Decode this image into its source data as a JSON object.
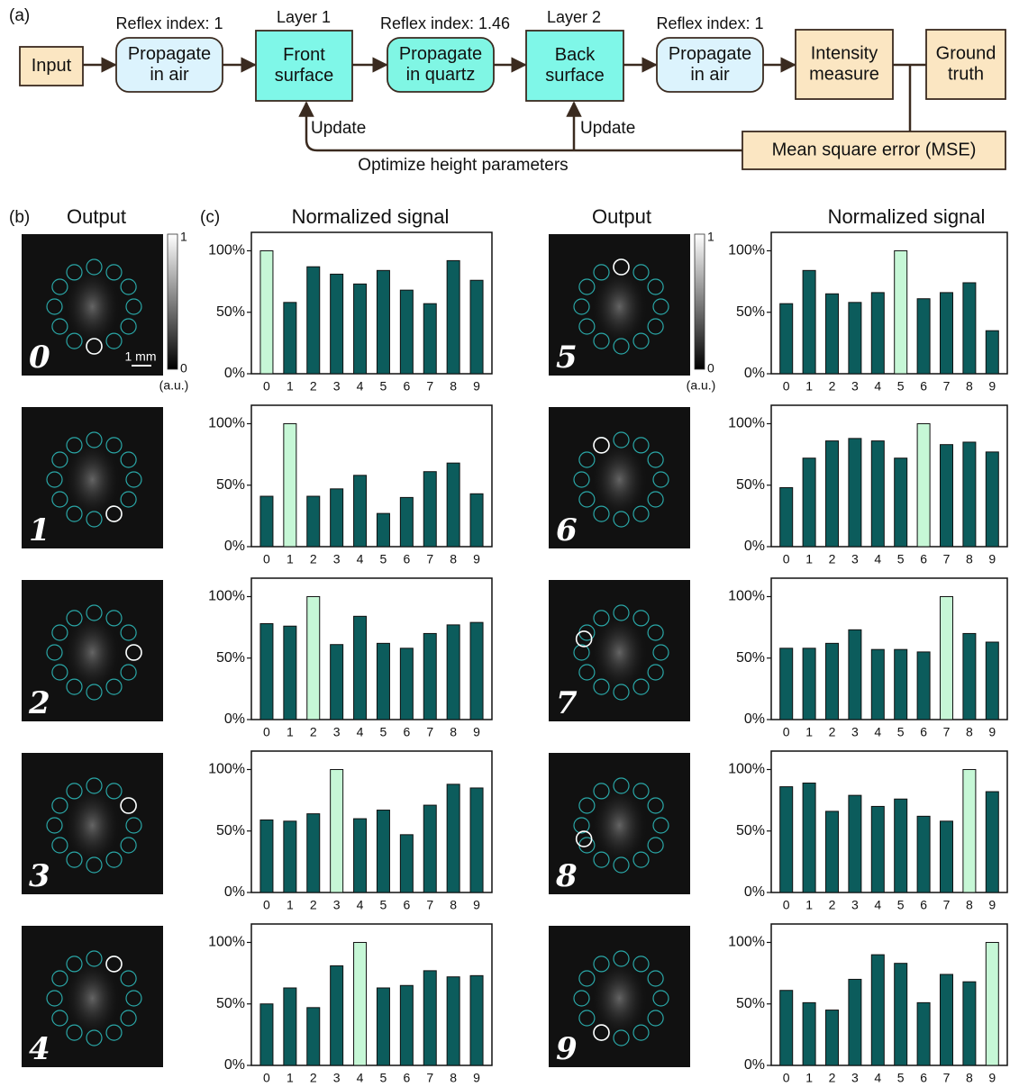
{
  "diagram": {
    "panel_label": "(a)",
    "nodes": [
      {
        "lines": [
          "Input"
        ]
      },
      {
        "lines": [
          "Propagate",
          "in air"
        ]
      },
      {
        "lines": [
          "Front",
          "surface"
        ]
      },
      {
        "lines": [
          "Propagate",
          "in quartz"
        ]
      },
      {
        "lines": [
          "Back",
          "surface"
        ]
      },
      {
        "lines": [
          "Propagate",
          "in air"
        ]
      },
      {
        "lines": [
          "Intensity",
          "measure"
        ]
      },
      {
        "lines": [
          "Ground",
          "truth"
        ]
      },
      {
        "lines": [
          "Mean square error (MSE)"
        ]
      }
    ],
    "top_labels": [
      "Reflex index: 1",
      "Layer 1",
      "Reflex index: 1.46",
      "Layer 2",
      "Reflex index: 1"
    ],
    "update_labels": [
      "Update",
      "Update"
    ],
    "feedback_label": "Optimize height parameters"
  },
  "panels": {
    "b_label": "(b)",
    "c_label": "(c)",
    "output_titles": [
      "Output",
      "Output"
    ],
    "signal_titles": [
      "Normalized signal",
      "Normalized signal"
    ],
    "scale_bar": "1 mm",
    "colorbar": {
      "ticks": [
        1,
        0
      ],
      "unit": "(a.u.)"
    },
    "digits": [
      "0",
      "1",
      "2",
      "3",
      "4",
      "5",
      "6",
      "7",
      "8",
      "9"
    ]
  },
  "chart_data": [
    {
      "type": "bar",
      "categories": [
        "0",
        "1",
        "2",
        "3",
        "4",
        "5",
        "6",
        "7",
        "8",
        "9"
      ],
      "values": [
        100,
        58,
        87,
        81,
        73,
        84,
        68,
        57,
        92,
        76
      ],
      "colors": [
        "#c6f7d6",
        "#0c5c5c",
        "#0c5c5c",
        "#0c5c5c",
        "#0c5c5c",
        "#0c5c5c",
        "#0c5c5c",
        "#0c5c5c",
        "#0c5c5c",
        "#0c5c5c"
      ],
      "ylim": [
        0,
        115
      ],
      "yticks": [
        {
          "value": 0,
          "label": "0%"
        },
        {
          "value": 50,
          "label": "50%"
        },
        {
          "value": 100,
          "label": "100%"
        }
      ]
    },
    {
      "type": "bar",
      "categories": [
        "0",
        "1",
        "2",
        "3",
        "4",
        "5",
        "6",
        "7",
        "8",
        "9"
      ],
      "values": [
        41,
        100,
        41,
        47,
        58,
        27,
        40,
        61,
        68,
        43
      ],
      "colors": [
        "#0c5c5c",
        "#c6f7d6",
        "#0c5c5c",
        "#0c5c5c",
        "#0c5c5c",
        "#0c5c5c",
        "#0c5c5c",
        "#0c5c5c",
        "#0c5c5c",
        "#0c5c5c"
      ],
      "ylim": [
        0,
        115
      ],
      "yticks": [
        {
          "value": 0,
          "label": "0%"
        },
        {
          "value": 50,
          "label": "50%"
        },
        {
          "value": 100,
          "label": "100%"
        }
      ]
    },
    {
      "type": "bar",
      "categories": [
        "0",
        "1",
        "2",
        "3",
        "4",
        "5",
        "6",
        "7",
        "8",
        "9"
      ],
      "values": [
        78,
        76,
        100,
        61,
        84,
        62,
        58,
        70,
        77,
        79
      ],
      "colors": [
        "#0c5c5c",
        "#0c5c5c",
        "#c6f7d6",
        "#0c5c5c",
        "#0c5c5c",
        "#0c5c5c",
        "#0c5c5c",
        "#0c5c5c",
        "#0c5c5c",
        "#0c5c5c"
      ],
      "ylim": [
        0,
        115
      ],
      "yticks": [
        {
          "value": 0,
          "label": "0%"
        },
        {
          "value": 50,
          "label": "50%"
        },
        {
          "value": 100,
          "label": "100%"
        }
      ]
    },
    {
      "type": "bar",
      "categories": [
        "0",
        "1",
        "2",
        "3",
        "4",
        "5",
        "6",
        "7",
        "8",
        "9"
      ],
      "values": [
        59,
        58,
        64,
        100,
        60,
        67,
        47,
        71,
        88,
        85
      ],
      "colors": [
        "#0c5c5c",
        "#0c5c5c",
        "#0c5c5c",
        "#c6f7d6",
        "#0c5c5c",
        "#0c5c5c",
        "#0c5c5c",
        "#0c5c5c",
        "#0c5c5c",
        "#0c5c5c"
      ],
      "ylim": [
        0,
        115
      ],
      "yticks": [
        {
          "value": 0,
          "label": "0%"
        },
        {
          "value": 50,
          "label": "50%"
        },
        {
          "value": 100,
          "label": "100%"
        }
      ]
    },
    {
      "type": "bar",
      "categories": [
        "0",
        "1",
        "2",
        "3",
        "4",
        "5",
        "6",
        "7",
        "8",
        "9"
      ],
      "values": [
        50,
        63,
        47,
        81,
        100,
        63,
        65,
        77,
        72,
        73
      ],
      "colors": [
        "#0c5c5c",
        "#0c5c5c",
        "#0c5c5c",
        "#0c5c5c",
        "#c6f7d6",
        "#0c5c5c",
        "#0c5c5c",
        "#0c5c5c",
        "#0c5c5c",
        "#0c5c5c"
      ],
      "ylim": [
        0,
        115
      ],
      "yticks": [
        {
          "value": 0,
          "label": "0%"
        },
        {
          "value": 50,
          "label": "50%"
        },
        {
          "value": 100,
          "label": "100%"
        }
      ]
    },
    {
      "type": "bar",
      "categories": [
        "0",
        "1",
        "2",
        "3",
        "4",
        "5",
        "6",
        "7",
        "8",
        "9"
      ],
      "values": [
        57,
        84,
        65,
        58,
        66,
        100,
        61,
        66,
        74,
        35
      ],
      "colors": [
        "#0c5c5c",
        "#0c5c5c",
        "#0c5c5c",
        "#0c5c5c",
        "#0c5c5c",
        "#c6f7d6",
        "#0c5c5c",
        "#0c5c5c",
        "#0c5c5c",
        "#0c5c5c"
      ],
      "ylim": [
        0,
        115
      ],
      "yticks": [
        {
          "value": 0,
          "label": "0%"
        },
        {
          "value": 50,
          "label": "50%"
        },
        {
          "value": 100,
          "label": "100%"
        }
      ]
    },
    {
      "type": "bar",
      "categories": [
        "0",
        "1",
        "2",
        "3",
        "4",
        "5",
        "6",
        "7",
        "8",
        "9"
      ],
      "values": [
        48,
        72,
        86,
        88,
        86,
        72,
        100,
        83,
        85,
        77
      ],
      "colors": [
        "#0c5c5c",
        "#0c5c5c",
        "#0c5c5c",
        "#0c5c5c",
        "#0c5c5c",
        "#0c5c5c",
        "#c6f7d6",
        "#0c5c5c",
        "#0c5c5c",
        "#0c5c5c"
      ],
      "ylim": [
        0,
        115
      ],
      "yticks": [
        {
          "value": 0,
          "label": "0%"
        },
        {
          "value": 50,
          "label": "50%"
        },
        {
          "value": 100,
          "label": "100%"
        }
      ]
    },
    {
      "type": "bar",
      "categories": [
        "0",
        "1",
        "2",
        "3",
        "4",
        "5",
        "6",
        "7",
        "8",
        "9"
      ],
      "values": [
        58,
        58,
        62,
        73,
        57,
        57,
        55,
        100,
        70,
        63
      ],
      "colors": [
        "#0c5c5c",
        "#0c5c5c",
        "#0c5c5c",
        "#0c5c5c",
        "#0c5c5c",
        "#0c5c5c",
        "#0c5c5c",
        "#c6f7d6",
        "#0c5c5c",
        "#0c5c5c"
      ],
      "ylim": [
        0,
        115
      ],
      "yticks": [
        {
          "value": 0,
          "label": "0%"
        },
        {
          "value": 50,
          "label": "50%"
        },
        {
          "value": 100,
          "label": "100%"
        }
      ]
    },
    {
      "type": "bar",
      "categories": [
        "0",
        "1",
        "2",
        "3",
        "4",
        "5",
        "6",
        "7",
        "8",
        "9"
      ],
      "values": [
        86,
        89,
        66,
        79,
        70,
        76,
        62,
        58,
        100,
        82
      ],
      "colors": [
        "#0c5c5c",
        "#0c5c5c",
        "#0c5c5c",
        "#0c5c5c",
        "#0c5c5c",
        "#0c5c5c",
        "#0c5c5c",
        "#0c5c5c",
        "#c6f7d6",
        "#0c5c5c"
      ],
      "ylim": [
        0,
        115
      ],
      "yticks": [
        {
          "value": 0,
          "label": "0%"
        },
        {
          "value": 50,
          "label": "50%"
        },
        {
          "value": 100,
          "label": "100%"
        }
      ]
    },
    {
      "type": "bar",
      "categories": [
        "0",
        "1",
        "2",
        "3",
        "4",
        "5",
        "6",
        "7",
        "8",
        "9"
      ],
      "values": [
        61,
        51,
        45,
        70,
        90,
        83,
        51,
        74,
        68,
        100
      ],
      "colors": [
        "#0c5c5c",
        "#0c5c5c",
        "#0c5c5c",
        "#0c5c5c",
        "#0c5c5c",
        "#0c5c5c",
        "#0c5c5c",
        "#0c5c5c",
        "#0c5c5c",
        "#c6f7d6"
      ],
      "ylim": [
        0,
        115
      ],
      "yticks": [
        {
          "value": 0,
          "label": "0%"
        },
        {
          "value": 50,
          "label": "50%"
        },
        {
          "value": 100,
          "label": "100%"
        }
      ]
    }
  ]
}
